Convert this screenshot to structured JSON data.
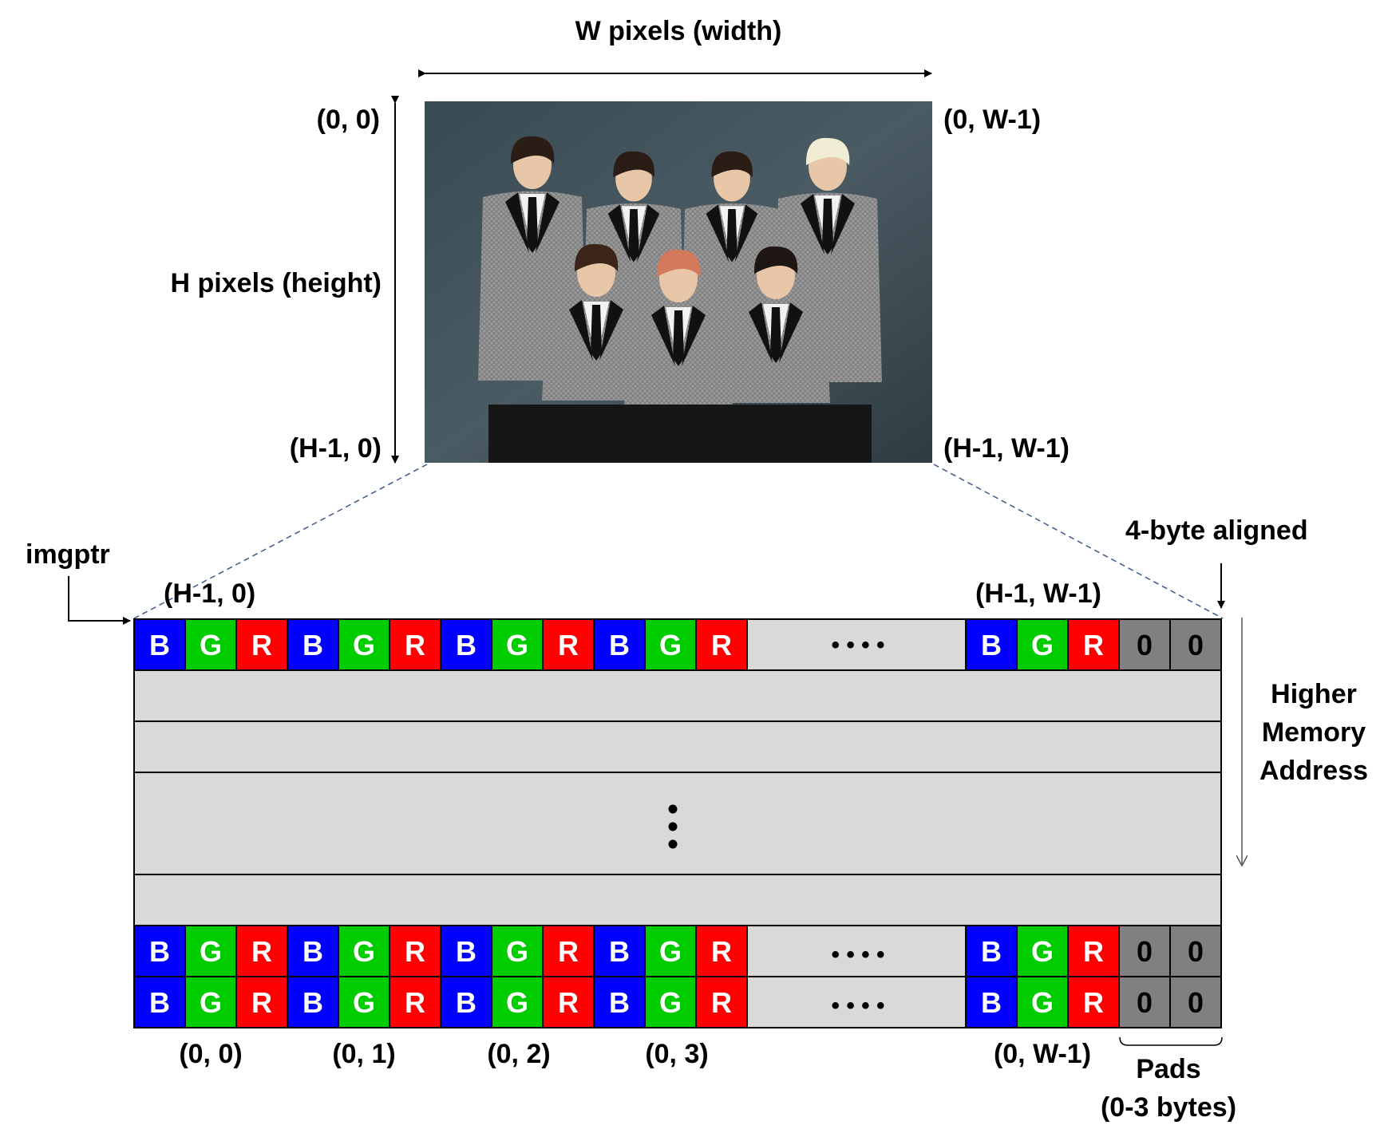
{
  "title": "",
  "image": {
    "width_label": "W pixels (width)",
    "height_label": "H pixels (height)",
    "corner_top_left": "(0, 0)",
    "corner_top_right": "(0, W-1)",
    "corner_bottom_left": "(H-1, 0)",
    "corner_bottom_right": "(H-1, W-1)",
    "photo_description_icon": "group-photo"
  },
  "memory": {
    "pointer_label": "imgptr",
    "first_row_left_label": "(H-1, 0)",
    "first_row_right_label": "(H-1, W-1)",
    "aligned_label": "4-byte aligned",
    "direction_label_lines": [
      "Higher",
      "Memory",
      "Address"
    ],
    "byte_labels": [
      "B",
      "G",
      "R"
    ],
    "pad_value": "0",
    "ellipsis": "• • • •",
    "bottom_labels": [
      "(0, 0)",
      "(0, 1)",
      "(0, 2)",
      "(0, 3)"
    ],
    "bottom_right_label": "(0, W-1)",
    "pads_label_lines": [
      "Pads",
      "(0-3 bytes)"
    ],
    "colors": {
      "B": "#0000ff",
      "G": "#00cc00",
      "R": "#ff0000",
      "pad": "#808080",
      "row": "#d9d9d9"
    }
  }
}
